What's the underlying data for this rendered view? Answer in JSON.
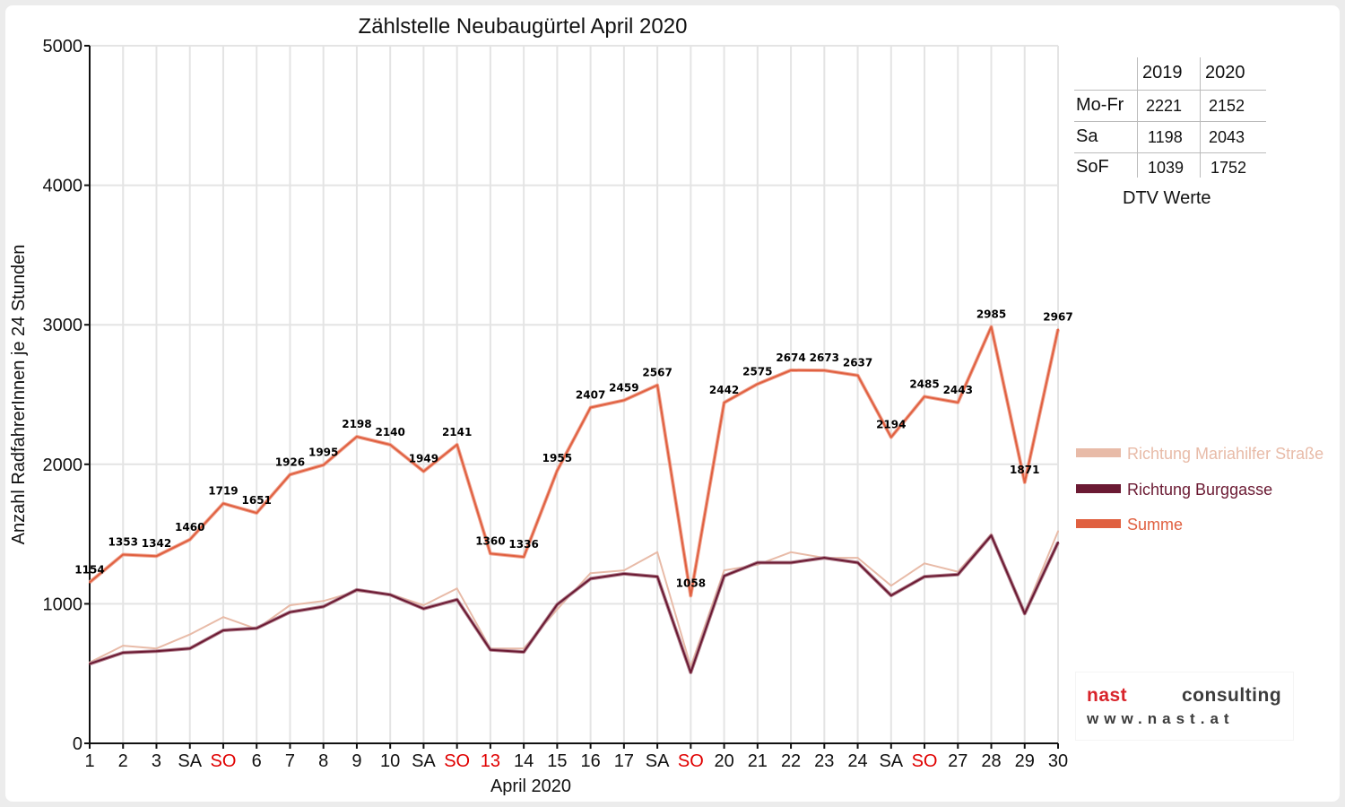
{
  "chart_data": {
    "type": "line",
    "title": "Zählstelle Neubaugürtel April 2020",
    "xlabel": "April 2020",
    "ylabel": "Anzahl RadfahrerInnen je 24 Stunden",
    "ylim": [
      0,
      5000
    ],
    "yticks": [
      "0",
      "1000",
      "2000",
      "3000",
      "4000",
      "5000"
    ],
    "grid": true,
    "legend_position": "right",
    "x": [
      1,
      2,
      3,
      4,
      5,
      6,
      7,
      8,
      9,
      10,
      11,
      12,
      13,
      14,
      15,
      16,
      17,
      18,
      19,
      20,
      21,
      22,
      23,
      24,
      25,
      26,
      27,
      28,
      29,
      30
    ],
    "categories": [
      "1",
      "2",
      "3",
      "SA",
      "SO",
      "6",
      "7",
      "8",
      "9",
      "10",
      "SA",
      "SO",
      "13",
      "14",
      "15",
      "16",
      "17",
      "SA",
      "SO",
      "20",
      "21",
      "22",
      "23",
      "24",
      "SA",
      "SO",
      "27",
      "28",
      "29",
      "30"
    ],
    "red_categories": [
      4,
      11,
      12,
      18,
      25
    ],
    "series": [
      {
        "name": "Richtung Mariahilfer Straße",
        "color": "#e8bba8",
        "values": [
          580,
          700,
          680,
          780,
          905,
          820,
          990,
          1020,
          1090,
          1070,
          990,
          1110,
          680,
          680,
          960,
          1220,
          1240,
          1370,
          550,
          1240,
          1280,
          1370,
          1330,
          1330,
          1130,
          1290,
          1230,
          1500,
          940,
          1520
        ]
      },
      {
        "name": "Richtung Burggasse",
        "color": "#6b1a33",
        "values": [
          570,
          650,
          660,
          680,
          810,
          825,
          940,
          980,
          1100,
          1065,
          965,
          1030,
          670,
          655,
          995,
          1180,
          1215,
          1195,
          508,
          1200,
          1295,
          1295,
          1330,
          1295,
          1060,
          1195,
          1210,
          1490,
          930,
          1440
        ]
      },
      {
        "name": "Summe",
        "color": "#e06040",
        "values": [
          1154,
          1353,
          1342,
          1460,
          1719,
          1651,
          1926,
          1995,
          2198,
          2140,
          1949,
          2141,
          1360,
          1336,
          1955,
          2407,
          2459,
          2567,
          1058,
          2442,
          2575,
          2674,
          2673,
          2637,
          2194,
          2485,
          2443,
          2985,
          1871,
          2967
        ]
      }
    ],
    "data_labels": [
      "1154",
      "1353",
      "1342",
      "1460",
      "1719",
      "1651",
      "1926",
      "1995",
      "2198",
      "2140",
      "1949",
      "2141",
      "1360",
      "1336",
      "1955",
      "2407",
      "2459",
      "2567",
      "1058",
      "2442",
      "2575",
      "2674",
      "2673",
      "2637",
      "2194",
      "2485",
      "2443",
      "2985",
      "1871",
      "2967"
    ]
  },
  "dtv_table": {
    "headers": [
      "",
      "2019",
      "2020"
    ],
    "rows": [
      {
        "label": "Mo-Fr",
        "v2019": "2221",
        "v2020": "2152"
      },
      {
        "label": "Sa",
        "v2019": "1198",
        "v2020": "2043"
      },
      {
        "label": "SoF",
        "v2019": "1039",
        "v2020": "1752"
      }
    ],
    "caption": "DTV Werte"
  },
  "logo": {
    "brand_nast": "nast",
    "brand_consulting": "consulting",
    "url": "www.nast.at"
  },
  "colors": {
    "label_red": "#e00000",
    "grid": "#e4e4e4",
    "axis": "#111111"
  }
}
